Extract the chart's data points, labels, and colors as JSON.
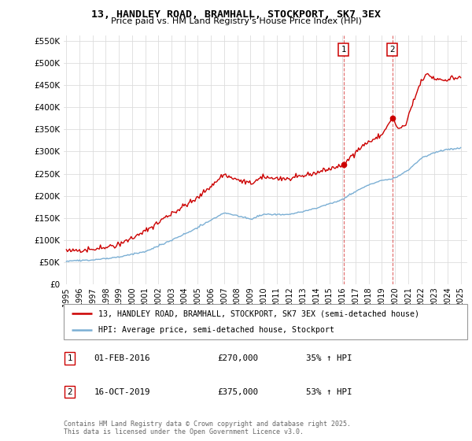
{
  "title": "13, HANDLEY ROAD, BRAMHALL, STOCKPORT, SK7 3EX",
  "subtitle": "Price paid vs. HM Land Registry's House Price Index (HPI)",
  "legend_property": "13, HANDLEY ROAD, BRAMHALL, STOCKPORT, SK7 3EX (semi-detached house)",
  "legend_hpi": "HPI: Average price, semi-detached house, Stockport",
  "footer": "Contains HM Land Registry data © Crown copyright and database right 2025.\nThis data is licensed under the Open Government Licence v3.0.",
  "annotation1": {
    "label": "1",
    "date": "01-FEB-2016",
    "price": "£270,000",
    "hpi": "35% ↑ HPI",
    "x": 2016.083
  },
  "annotation2": {
    "label": "2",
    "date": "16-OCT-2019",
    "price": "£375,000",
    "hpi": "53% ↑ HPI",
    "x": 2019.79
  },
  "ann1_y": 270000,
  "ann2_y": 375000,
  "ylim": [
    0,
    562500
  ],
  "xlim_start": 1994.8,
  "xlim_end": 2025.5,
  "y_ticks": [
    0,
    50000,
    100000,
    150000,
    200000,
    250000,
    300000,
    350000,
    400000,
    450000,
    500000,
    550000
  ],
  "x_ticks": [
    1995,
    1996,
    1997,
    1998,
    1999,
    2000,
    2001,
    2002,
    2003,
    2004,
    2005,
    2006,
    2007,
    2008,
    2009,
    2010,
    2011,
    2012,
    2013,
    2014,
    2015,
    2016,
    2017,
    2018,
    2019,
    2020,
    2021,
    2022,
    2023,
    2024,
    2025
  ],
  "property_color": "#cc0000",
  "hpi_color": "#7bafd4",
  "grid_color": "#dddddd",
  "background_color": "#ffffff",
  "annotation_box_color": "#cc0000",
  "prop_keypoints": [
    [
      1995.0,
      75000
    ],
    [
      1997.0,
      80000
    ],
    [
      1999.0,
      90000
    ],
    [
      2001.0,
      120000
    ],
    [
      2003.0,
      160000
    ],
    [
      2005.0,
      195000
    ],
    [
      2007.0,
      250000
    ],
    [
      2008.0,
      235000
    ],
    [
      2009.0,
      228000
    ],
    [
      2010.0,
      242000
    ],
    [
      2012.0,
      238000
    ],
    [
      2014.0,
      252000
    ],
    [
      2016.083,
      270000
    ],
    [
      2017.0,
      300000
    ],
    [
      2018.0,
      322000
    ],
    [
      2019.0,
      338000
    ],
    [
      2019.79,
      375000
    ],
    [
      2020.3,
      350000
    ],
    [
      2020.8,
      360000
    ],
    [
      2021.5,
      420000
    ],
    [
      2022.0,
      460000
    ],
    [
      2022.5,
      475000
    ],
    [
      2023.0,
      465000
    ],
    [
      2024.0,
      462000
    ],
    [
      2025.0,
      470000
    ]
  ],
  "hpi_keypoints": [
    [
      1995.0,
      53000
    ],
    [
      1997.0,
      55000
    ],
    [
      1999.0,
      62000
    ],
    [
      2001.0,
      74000
    ],
    [
      2003.0,
      100000
    ],
    [
      2005.0,
      128000
    ],
    [
      2007.0,
      162000
    ],
    [
      2008.0,
      155000
    ],
    [
      2009.0,
      148000
    ],
    [
      2010.0,
      158000
    ],
    [
      2012.0,
      158000
    ],
    [
      2014.0,
      172000
    ],
    [
      2016.0,
      192000
    ],
    [
      2017.0,
      210000
    ],
    [
      2018.0,
      225000
    ],
    [
      2019.0,
      235000
    ],
    [
      2020.0,
      240000
    ],
    [
      2021.0,
      258000
    ],
    [
      2022.0,
      285000
    ],
    [
      2023.0,
      298000
    ],
    [
      2024.0,
      305000
    ],
    [
      2025.0,
      308000
    ]
  ]
}
